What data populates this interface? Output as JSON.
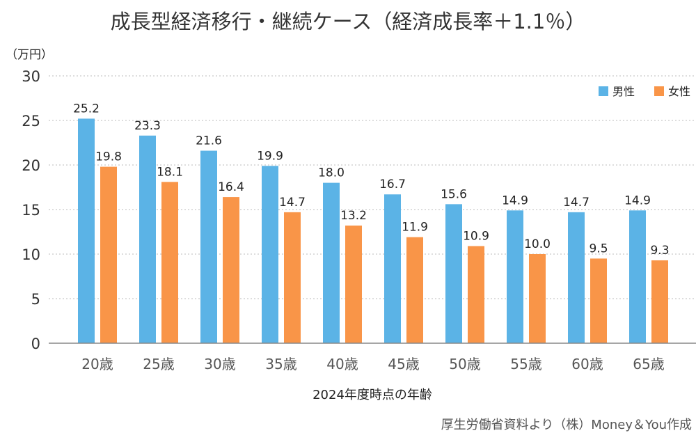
{
  "title": "成長型経済移行・継続ケース（経済成長率＋1.1％）",
  "unit_label": "（万円）",
  "source": "厚生労働省資料より（株）Money＆You作成",
  "chart_data": {
    "type": "bar",
    "title": "成長型経済移行・継続ケース（経済成長率＋1.1％）",
    "xlabel": "2024年度時点の年齢",
    "ylabel": "（万円）",
    "ylim": [
      0,
      30
    ],
    "yticks": [
      "0",
      "5",
      "10",
      "15",
      "20",
      "25",
      "30"
    ],
    "grid": true,
    "legend_position": "top-right",
    "categories": [
      "20歳",
      "25歳",
      "30歳",
      "35歳",
      "40歳",
      "45歳",
      "50歳",
      "55歳",
      "60歳",
      "65歳"
    ],
    "series": [
      {
        "name": "男性",
        "color": "#5BB3E6",
        "values": [
          25.2,
          23.3,
          21.6,
          19.9,
          18.0,
          16.7,
          15.6,
          14.9,
          14.7,
          14.9
        ],
        "labels": [
          "25.2",
          "23.3",
          "21.6",
          "19.9",
          "18.0",
          "16.7",
          "15.6",
          "14.9",
          "14.7",
          "14.9"
        ]
      },
      {
        "name": "女性",
        "color": "#F99548",
        "values": [
          19.8,
          18.1,
          16.4,
          14.7,
          13.2,
          11.9,
          10.9,
          10.0,
          9.5,
          9.3
        ],
        "labels": [
          "19.8",
          "18.1",
          "16.4",
          "14.7",
          "13.2",
          "11.9",
          "10.9",
          "10.0",
          "9.5",
          "9.3"
        ]
      }
    ]
  }
}
